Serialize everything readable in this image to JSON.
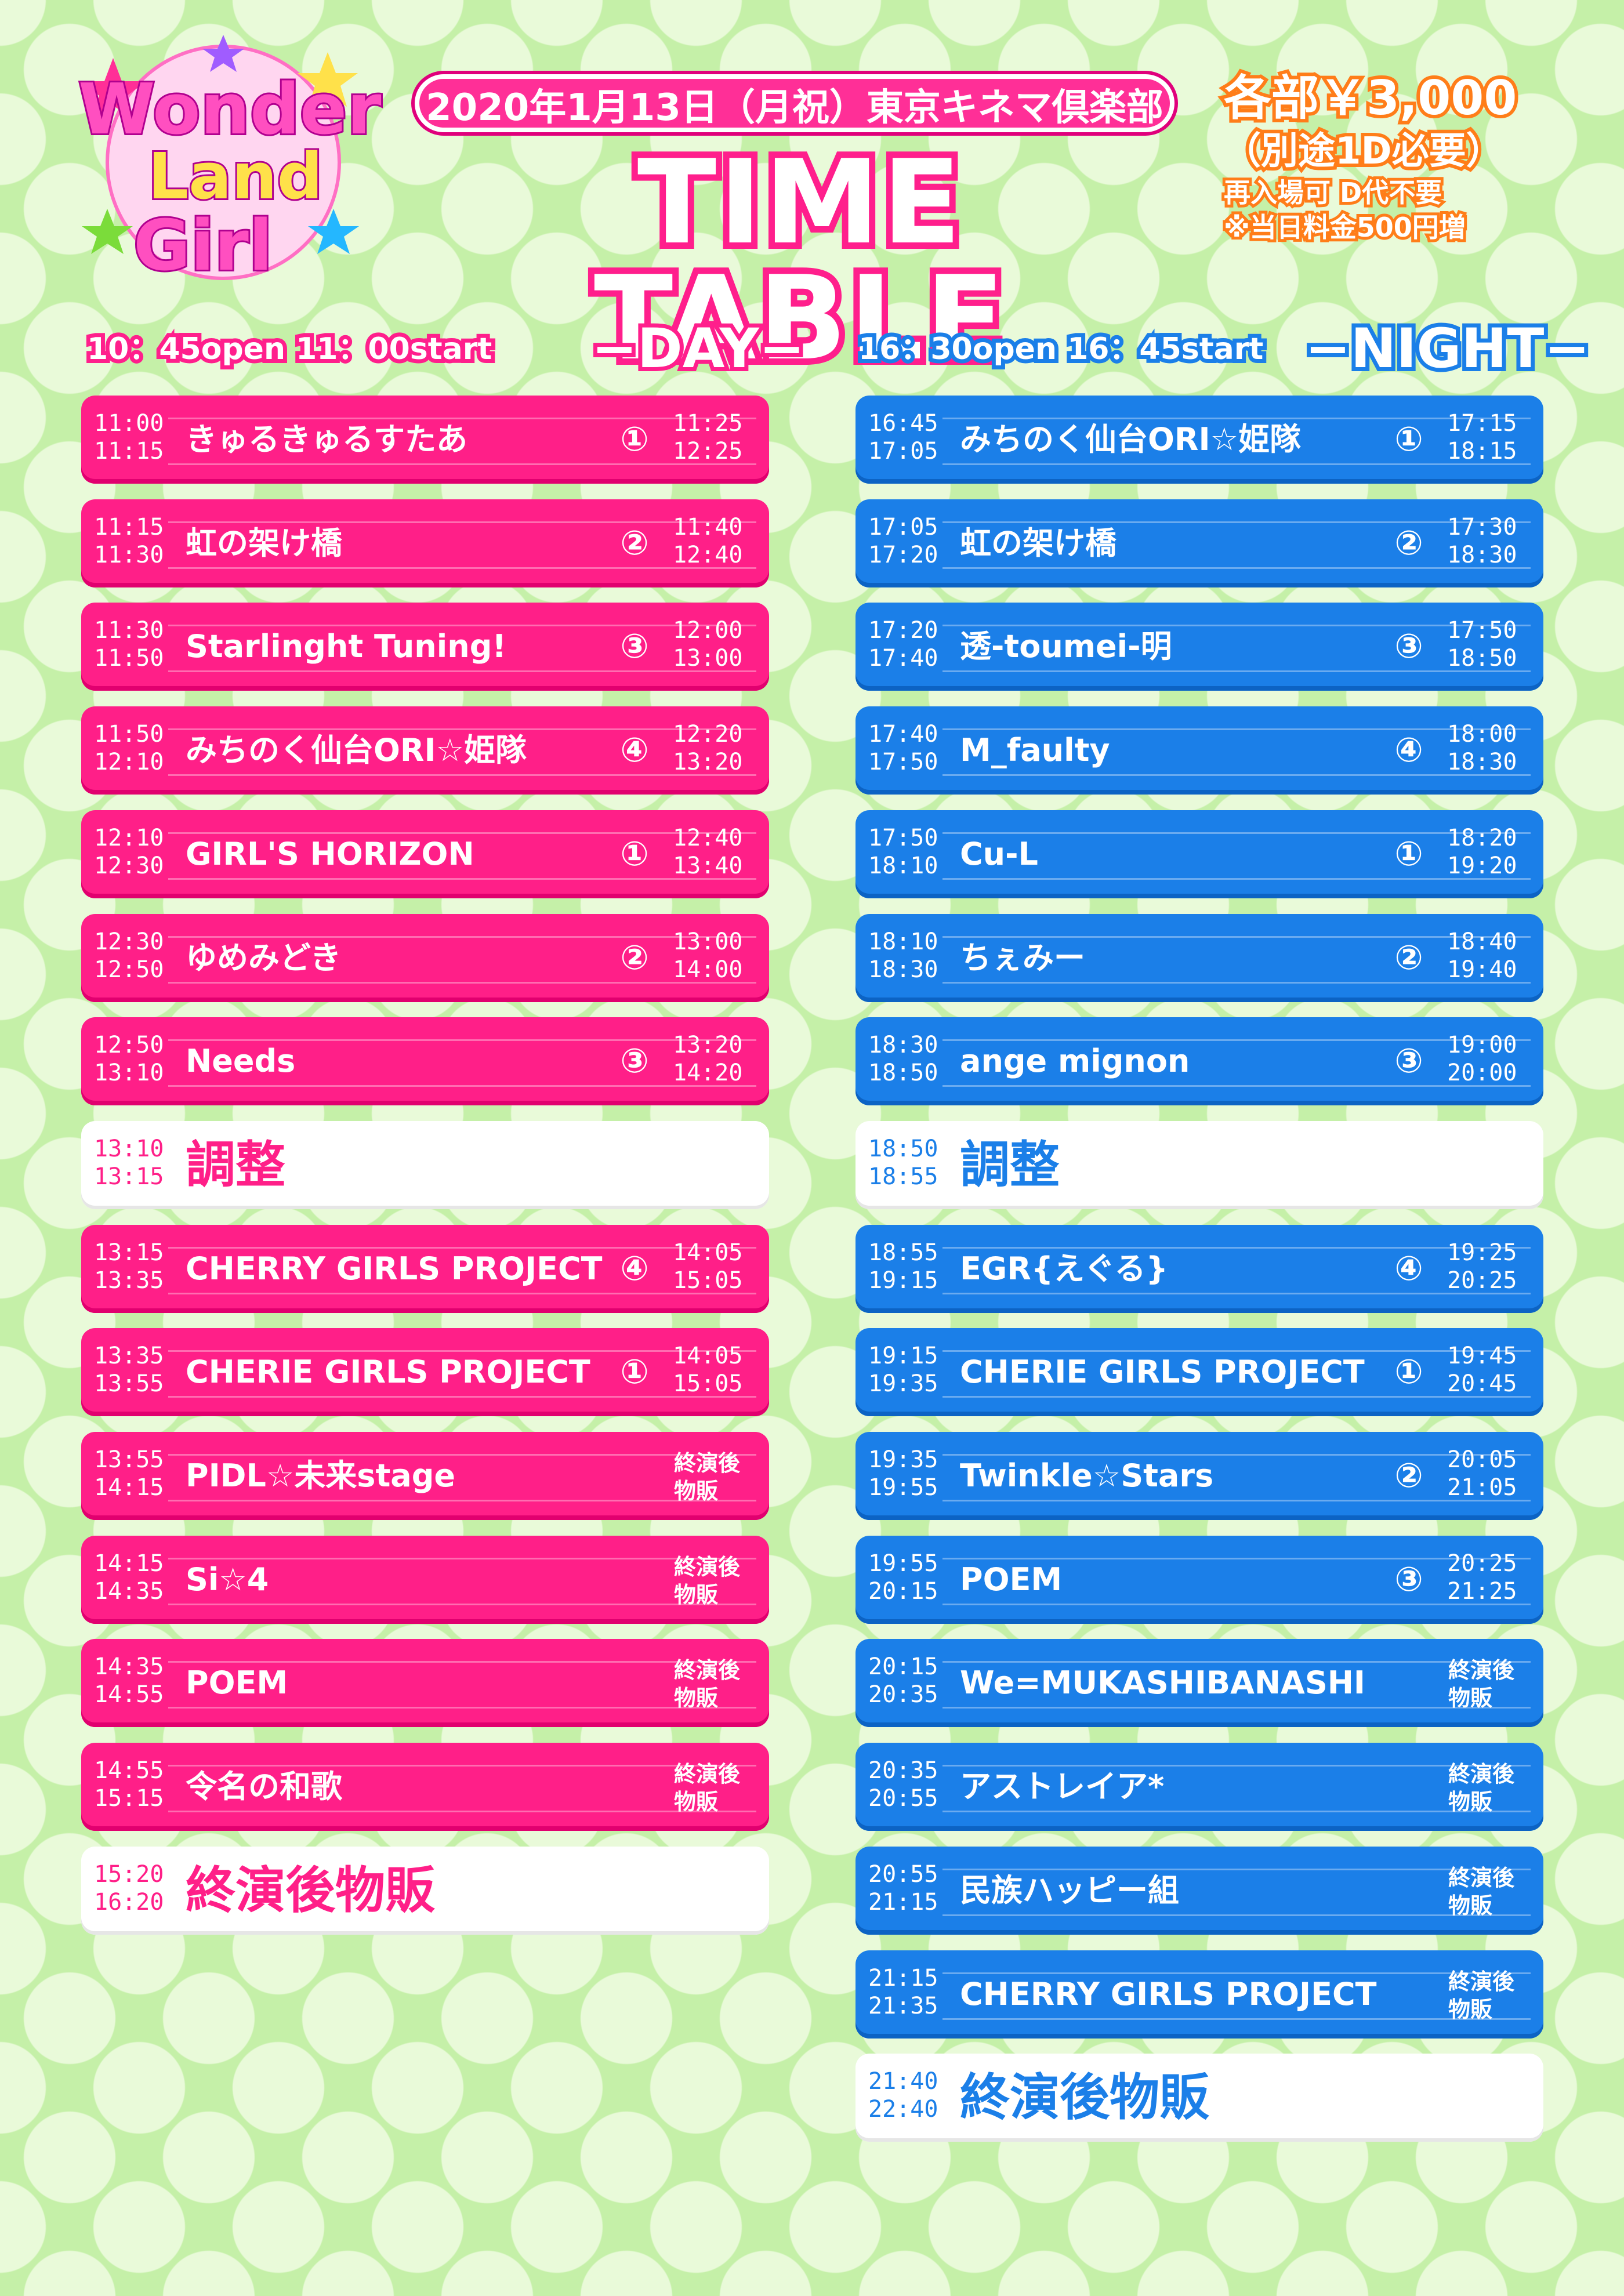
{
  "logo": {
    "line1": "Wonder",
    "line2": "Land",
    "line3": "Girl"
  },
  "header": {
    "subtitle": "2020年1月13日（月祝）東京キネマ倶楽部",
    "title": "TIME TABLE"
  },
  "price": {
    "main": "各部￥3,000",
    "drink": "（別途1D必要）",
    "note1": "再入場可 D代不要",
    "note2": "※当日料金500円増"
  },
  "day": {
    "open_text": "10：45open 11：00start",
    "label": "−DAY−",
    "rows": [
      {
        "start": "11:00",
        "end": "11:15",
        "act": "きゅるきゅるすたあ",
        "stage": "①",
        "goods_start": "11:25",
        "goods_end": "12:25"
      },
      {
        "start": "11:15",
        "end": "11:30",
        "act": "虹の架け橋",
        "stage": "②",
        "goods_start": "11:40",
        "goods_end": "12:40"
      },
      {
        "start": "11:30",
        "end": "11:50",
        "act": "Starlinght Tuning!",
        "stage": "③",
        "goods_start": "12:00",
        "goods_end": "13:00"
      },
      {
        "start": "11:50",
        "end": "12:10",
        "act": "みちのく仙台ORI☆姫隊",
        "stage": "④",
        "goods_start": "12:20",
        "goods_end": "13:20"
      },
      {
        "start": "12:10",
        "end": "12:30",
        "act": "GIRL'S HORIZON",
        "stage": "①",
        "goods_start": "12:40",
        "goods_end": "13:40"
      },
      {
        "start": "12:30",
        "end": "12:50",
        "act": "ゆめみどき",
        "stage": "②",
        "goods_start": "13:00",
        "goods_end": "14:00"
      },
      {
        "start": "12:50",
        "end": "13:10",
        "act": "Needs",
        "stage": "③",
        "goods_start": "13:20",
        "goods_end": "14:20"
      },
      {
        "start": "13:10",
        "end": "13:15",
        "act": "調整",
        "adjust": true
      },
      {
        "start": "13:15",
        "end": "13:35",
        "act": "CHERRY GIRLS PROJECT",
        "stage": "④",
        "goods_start": "14:05",
        "goods_end": "15:05"
      },
      {
        "start": "13:35",
        "end": "13:55",
        "act": "CHERIE GIRLS PROJECT",
        "stage": "①",
        "goods_start": "14:05",
        "goods_end": "15:05"
      },
      {
        "start": "13:55",
        "end": "14:15",
        "act": "PIDL☆未来stage",
        "goods_after": "終演後物販"
      },
      {
        "start": "14:15",
        "end": "14:35",
        "act": "Si☆4",
        "goods_after": "終演後物販"
      },
      {
        "start": "14:35",
        "end": "14:55",
        "act": "POEM",
        "goods_after": "終演後物販"
      },
      {
        "start": "14:55",
        "end": "15:15",
        "act": "令名の和歌",
        "goods_after": "終演後物販"
      },
      {
        "start": "15:20",
        "end": "16:20",
        "act": "終演後物販",
        "adjust": true
      }
    ]
  },
  "night": {
    "open_text": "16：30open 16：45start",
    "label": "−NIGHT−",
    "rows": [
      {
        "start": "16:45",
        "end": "17:05",
        "act": "みちのく仙台ORI☆姫隊",
        "stage": "①",
        "goods_start": "17:15",
        "goods_end": "18:15"
      },
      {
        "start": "17:05",
        "end": "17:20",
        "act": "虹の架け橋",
        "stage": "②",
        "goods_start": "17:30",
        "goods_end": "18:30"
      },
      {
        "start": "17:20",
        "end": "17:40",
        "act": "透-toumei-明",
        "stage": "③",
        "goods_start": "17:50",
        "goods_end": "18:50"
      },
      {
        "start": "17:40",
        "end": "17:50",
        "act": "M_faulty",
        "stage": "④",
        "goods_start": "18:00",
        "goods_end": "18:30"
      },
      {
        "start": "17:50",
        "end": "18:10",
        "act": "Cu-L",
        "stage": "①",
        "goods_start": "18:20",
        "goods_end": "19:20"
      },
      {
        "start": "18:10",
        "end": "18:30",
        "act": "ちぇみー",
        "stage": "②",
        "goods_start": "18:40",
        "goods_end": "19:40"
      },
      {
        "start": "18:30",
        "end": "18:50",
        "act": "ange mignon",
        "stage": "③",
        "goods_start": "19:00",
        "goods_end": "20:00"
      },
      {
        "start": "18:50",
        "end": "18:55",
        "act": "調整",
        "adjust": true
      },
      {
        "start": "18:55",
        "end": "19:15",
        "act": "EGR{えぐる}",
        "stage": "④",
        "goods_start": "19:25",
        "goods_end": "20:25"
      },
      {
        "start": "19:15",
        "end": "19:35",
        "act": "CHERIE GIRLS PROJECT",
        "stage": "①",
        "goods_start": "19:45",
        "goods_end": "20:45"
      },
      {
        "start": "19:35",
        "end": "19:55",
        "act": "Twinkle☆Stars",
        "stage": "②",
        "goods_start": "20:05",
        "goods_end": "21:05"
      },
      {
        "start": "19:55",
        "end": "20:15",
        "act": "POEM",
        "stage": "③",
        "goods_start": "20:25",
        "goods_end": "21:25"
      },
      {
        "start": "20:15",
        "end": "20:35",
        "act": "We=MUKASHIBANASHI",
        "goods_after": "終演後物販"
      },
      {
        "start": "20:35",
        "end": "20:55",
        "act": "アストレイア*",
        "goods_after": "終演後物販"
      },
      {
        "start": "20:55",
        "end": "21:15",
        "act": "民族ハッピー組",
        "goods_after": "終演後物販"
      },
      {
        "start": "21:15",
        "end": "21:35",
        "act": "CHERRY GIRLS PROJECT",
        "goods_after": "終演後物販"
      },
      {
        "start": "21:40",
        "end": "22:40",
        "act": "終演後物販",
        "adjust": true
      }
    ]
  },
  "colors": {
    "day": "#ff1f88",
    "night": "#1b7fe8",
    "price": "#ff7d19",
    "background": "#c5f0a8"
  }
}
